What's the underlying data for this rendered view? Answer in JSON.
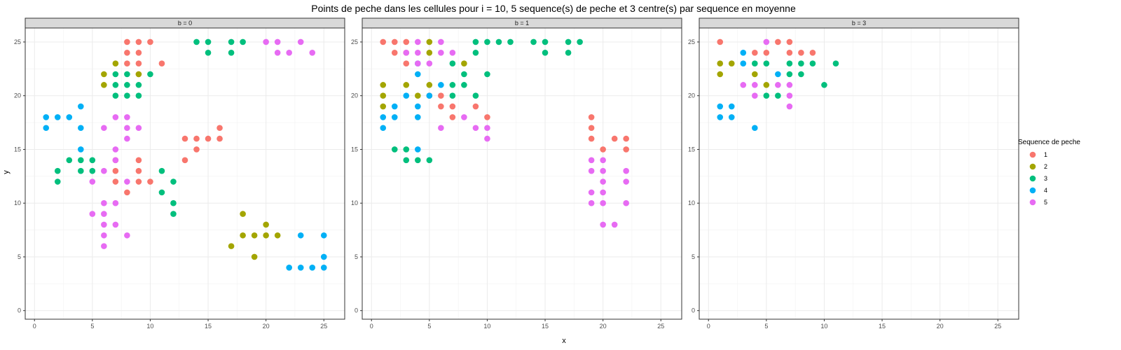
{
  "chart_data": {
    "type": "scatter",
    "title": "Points de peche dans les cellules pour i = 10, 5 sequence(s) de peche et 3 centre(s) par sequence en moyenne",
    "xlabel": "x",
    "ylabel": "y",
    "xlim": [
      -0.8,
      26.8
    ],
    "ylim": [
      -0.8,
      26.3
    ],
    "xticks": [
      0,
      5,
      10,
      15,
      20,
      25
    ],
    "yticks": [
      0,
      5,
      10,
      15,
      20,
      25
    ],
    "grid": true,
    "legend": {
      "title": "Sequence de peche",
      "position": "right",
      "items": [
        {
          "label": "1",
          "color": "#F8766D"
        },
        {
          "label": "2",
          "color": "#A3A500"
        },
        {
          "label": "3",
          "color": "#00BF7D"
        },
        {
          "label": "4",
          "color": "#00B0F6"
        },
        {
          "label": "5",
          "color": "#E76BF3"
        }
      ]
    },
    "facets": [
      {
        "strip": "b = 0",
        "series": [
          {
            "name": "1",
            "points": [
              [
                8,
                25
              ],
              [
                9,
                25
              ],
              [
                10,
                25
              ],
              [
                8,
                24
              ],
              [
                9,
                24
              ],
              [
                8,
                23
              ],
              [
                9,
                23
              ],
              [
                11,
                23
              ],
              [
                9,
                22
              ],
              [
                13,
                16
              ],
              [
                14,
                16
              ],
              [
                15,
                16
              ],
              [
                16,
                17
              ],
              [
                14,
                15
              ],
              [
                16,
                16
              ],
              [
                13,
                14
              ],
              [
                7,
                13
              ],
              [
                9,
                13
              ],
              [
                7,
                12
              ],
              [
                9,
                12
              ],
              [
                10,
                12
              ],
              [
                8,
                11
              ],
              [
                7,
                14
              ],
              [
                9,
                14
              ]
            ]
          },
          {
            "name": "2",
            "points": [
              [
                6,
                22
              ],
              [
                7,
                23
              ],
              [
                9,
                22
              ],
              [
                6,
                21
              ],
              [
                18,
                9
              ],
              [
                20,
                8
              ],
              [
                17,
                6
              ],
              [
                18,
                7
              ],
              [
                19,
                7
              ],
              [
                20,
                7
              ],
              [
                21,
                7
              ],
              [
                19,
                5
              ]
            ]
          },
          {
            "name": "3",
            "points": [
              [
                7,
                22
              ],
              [
                8,
                22
              ],
              [
                10,
                22
              ],
              [
                7,
                21
              ],
              [
                8,
                21
              ],
              [
                9,
                21
              ],
              [
                7,
                20
              ],
              [
                8,
                20
              ],
              [
                9,
                20
              ],
              [
                14,
                25
              ],
              [
                15,
                25
              ],
              [
                17,
                25
              ],
              [
                18,
                25
              ],
              [
                15,
                24
              ],
              [
                17,
                24
              ],
              [
                2,
                13
              ],
              [
                3,
                14
              ],
              [
                4,
                14
              ],
              [
                5,
                14
              ],
              [
                4,
                13
              ],
              [
                5,
                13
              ],
              [
                2,
                12
              ],
              [
                11,
                13
              ],
              [
                12,
                12
              ],
              [
                11,
                11
              ],
              [
                12,
                10
              ],
              [
                12,
                9
              ]
            ]
          },
          {
            "name": "4",
            "points": [
              [
                1,
                18
              ],
              [
                2,
                18
              ],
              [
                3,
                18
              ],
              [
                4,
                19
              ],
              [
                1,
                17
              ],
              [
                4,
                17
              ],
              [
                4,
                15
              ],
              [
                23,
                7
              ],
              [
                25,
                7
              ],
              [
                25,
                5
              ],
              [
                22,
                4
              ],
              [
                23,
                4
              ],
              [
                24,
                4
              ],
              [
                25,
                4
              ]
            ]
          },
          {
            "name": "5",
            "points": [
              [
                20,
                25
              ],
              [
                21,
                25
              ],
              [
                23,
                25
              ],
              [
                21,
                24
              ],
              [
                22,
                24
              ],
              [
                24,
                24
              ],
              [
                6,
                17
              ],
              [
                7,
                18
              ],
              [
                8,
                18
              ],
              [
                8,
                17
              ],
              [
                9,
                17
              ],
              [
                8,
                16
              ],
              [
                7,
                15
              ],
              [
                6,
                13
              ],
              [
                8,
                12
              ],
              [
                5,
                12
              ],
              [
                7,
                14
              ],
              [
                6,
                10
              ],
              [
                7,
                10
              ],
              [
                5,
                9
              ],
              [
                6,
                9
              ],
              [
                6,
                8
              ],
              [
                7,
                8
              ],
              [
                6,
                7
              ],
              [
                8,
                7
              ],
              [
                6,
                6
              ]
            ]
          }
        ]
      },
      {
        "strip": "b = 1",
        "series": [
          {
            "name": "1",
            "points": [
              [
                1,
                25
              ],
              [
                2,
                25
              ],
              [
                3,
                25
              ],
              [
                2,
                24
              ],
              [
                3,
                24
              ],
              [
                3,
                23
              ],
              [
                5,
                20
              ],
              [
                6,
                20
              ],
              [
                6,
                19
              ],
              [
                7,
                19
              ],
              [
                9,
                19
              ],
              [
                7,
                18
              ],
              [
                10,
                18
              ]
            ]
          },
          {
            "name": "1",
            "points": [
              [
                19,
                18
              ],
              [
                19,
                17
              ],
              [
                19,
                16
              ],
              [
                20,
                15
              ],
              [
                21,
                16
              ],
              [
                22,
                16
              ],
              [
                22,
                15
              ]
            ]
          },
          {
            "name": "2",
            "points": [
              [
                5,
                25
              ],
              [
                5,
                24
              ],
              [
                1,
                21
              ],
              [
                3,
                21
              ],
              [
                5,
                21
              ],
              [
                1,
                20
              ],
              [
                4,
                20
              ],
              [
                1,
                19
              ],
              [
                8,
                23
              ]
            ]
          },
          {
            "name": "3",
            "points": [
              [
                9,
                25
              ],
              [
                10,
                25
              ],
              [
                11,
                25
              ],
              [
                12,
                25
              ],
              [
                14,
                25
              ],
              [
                15,
                25
              ],
              [
                17,
                25
              ],
              [
                18,
                25
              ],
              [
                9,
                24
              ],
              [
                15,
                24
              ],
              [
                17,
                24
              ],
              [
                7,
                23
              ],
              [
                8,
                22
              ],
              [
                10,
                22
              ],
              [
                7,
                21
              ],
              [
                8,
                21
              ],
              [
                7,
                20
              ],
              [
                9,
                20
              ],
              [
                2,
                15
              ],
              [
                3,
                15
              ],
              [
                3,
                14
              ],
              [
                4,
                14
              ],
              [
                5,
                14
              ]
            ]
          },
          {
            "name": "4",
            "points": [
              [
                4,
                23
              ],
              [
                4,
                22
              ],
              [
                3,
                20
              ],
              [
                6,
                21
              ],
              [
                5,
                20
              ],
              [
                2,
                19
              ],
              [
                4,
                19
              ],
              [
                1,
                18
              ],
              [
                2,
                18
              ],
              [
                4,
                18
              ],
              [
                1,
                17
              ],
              [
                4,
                15
              ]
            ]
          },
          {
            "name": "5",
            "points": [
              [
                4,
                25
              ],
              [
                6,
                25
              ],
              [
                3,
                24
              ],
              [
                4,
                24
              ],
              [
                6,
                24
              ],
              [
                7,
                24
              ],
              [
                4,
                23
              ],
              [
                5,
                23
              ],
              [
                6,
                17
              ],
              [
                8,
                18
              ],
              [
                9,
                17
              ],
              [
                10,
                17
              ],
              [
                10,
                16
              ],
              [
                19,
                14
              ],
              [
                20,
                14
              ],
              [
                19,
                13
              ],
              [
                20,
                13
              ],
              [
                22,
                13
              ],
              [
                20,
                12
              ],
              [
                22,
                12
              ],
              [
                19,
                11
              ],
              [
                20,
                11
              ],
              [
                19,
                10
              ],
              [
                20,
                10
              ],
              [
                22,
                10
              ],
              [
                20,
                8
              ],
              [
                21,
                8
              ]
            ]
          }
        ]
      },
      {
        "strip": "b = 3",
        "series": [
          {
            "name": "1",
            "points": [
              [
                1,
                25
              ],
              [
                6,
                25
              ],
              [
                7,
                25
              ],
              [
                4,
                24
              ],
              [
                5,
                24
              ],
              [
                7,
                24
              ],
              [
                8,
                24
              ],
              [
                9,
                24
              ]
            ]
          },
          {
            "name": "2",
            "points": [
              [
                1,
                23
              ],
              [
                2,
                23
              ],
              [
                1,
                22
              ],
              [
                4,
                22
              ],
              [
                5,
                21
              ]
            ]
          },
          {
            "name": "3",
            "points": [
              [
                4,
                23
              ],
              [
                5,
                23
              ],
              [
                7,
                23
              ],
              [
                8,
                23
              ],
              [
                9,
                23
              ],
              [
                11,
                23
              ],
              [
                7,
                22
              ],
              [
                8,
                22
              ],
              [
                10,
                21
              ],
              [
                5,
                20
              ],
              [
                6,
                20
              ]
            ]
          },
          {
            "name": "4",
            "points": [
              [
                3,
                24
              ],
              [
                3,
                23
              ],
              [
                6,
                22
              ],
              [
                1,
                19
              ],
              [
                2,
                19
              ],
              [
                1,
                18
              ],
              [
                2,
                18
              ],
              [
                4,
                17
              ]
            ]
          },
          {
            "name": "5",
            "points": [
              [
                5,
                25
              ],
              [
                3,
                21
              ],
              [
                4,
                21
              ],
              [
                6,
                21
              ],
              [
                7,
                21
              ],
              [
                4,
                20
              ],
              [
                7,
                20
              ],
              [
                7,
                19
              ]
            ]
          }
        ]
      }
    ]
  }
}
